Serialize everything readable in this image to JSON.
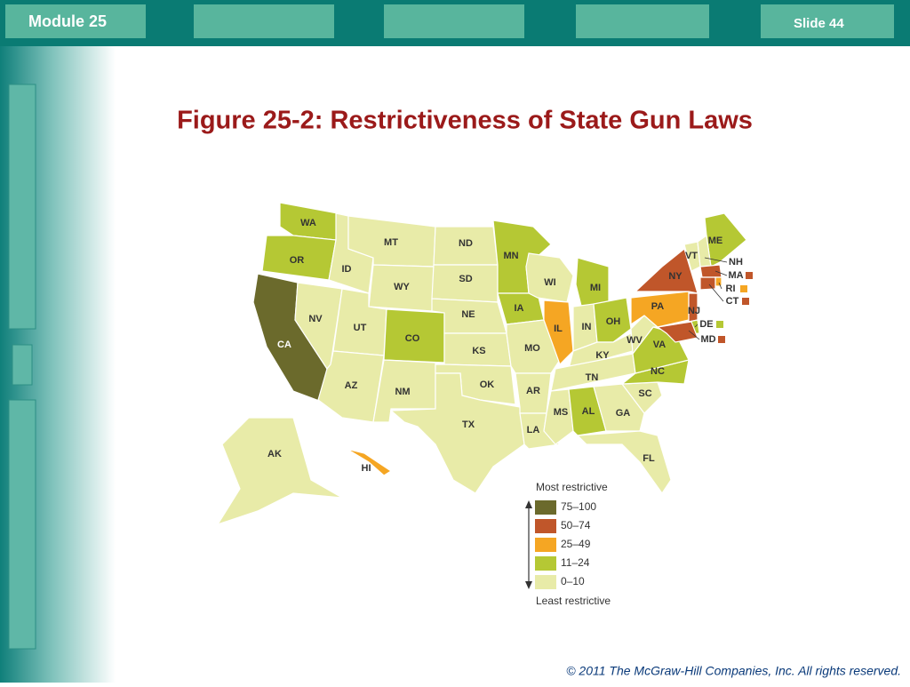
{
  "header": {
    "module": "Module 25",
    "slide": "Slide 44"
  },
  "title": "Figure 25-2: Restrictiveness of State Gun Laws",
  "map": {
    "states": [
      {
        "label": "WA",
        "color": "#b5c834"
      },
      {
        "label": "OR",
        "color": "#b5c834"
      },
      {
        "label": "CA",
        "color": "#6b6a2c"
      },
      {
        "label": "NV",
        "color": "#e8eba8"
      },
      {
        "label": "ID",
        "color": "#e8eba8"
      },
      {
        "label": "MT",
        "color": "#e8eba8"
      },
      {
        "label": "WY",
        "color": "#e8eba8"
      },
      {
        "label": "UT",
        "color": "#e8eba8"
      },
      {
        "label": "CO",
        "color": "#b5c834"
      },
      {
        "label": "AZ",
        "color": "#e8eba8"
      },
      {
        "label": "NM",
        "color": "#e8eba8"
      },
      {
        "label": "ND",
        "color": "#e8eba8"
      },
      {
        "label": "SD",
        "color": "#e8eba8"
      },
      {
        "label": "NE",
        "color": "#e8eba8"
      },
      {
        "label": "KS",
        "color": "#e8eba8"
      },
      {
        "label": "OK",
        "color": "#e8eba8"
      },
      {
        "label": "TX",
        "color": "#e8eba8"
      },
      {
        "label": "MN",
        "color": "#b5c834"
      },
      {
        "label": "IA",
        "color": "#b5c834"
      },
      {
        "label": "MO",
        "color": "#e8eba8"
      },
      {
        "label": "AR",
        "color": "#e8eba8"
      },
      {
        "label": "LA",
        "color": "#e8eba8"
      },
      {
        "label": "WI",
        "color": "#e8eba8"
      },
      {
        "label": "IL",
        "color": "#f5a623"
      },
      {
        "label": "MI",
        "color": "#b5c834"
      },
      {
        "label": "IN",
        "color": "#e8eba8"
      },
      {
        "label": "OH",
        "color": "#b5c834"
      },
      {
        "label": "KY",
        "color": "#e8eba8"
      },
      {
        "label": "TN",
        "color": "#e8eba8"
      },
      {
        "label": "MS",
        "color": "#e8eba8"
      },
      {
        "label": "AL",
        "color": "#b5c834"
      },
      {
        "label": "GA",
        "color": "#e8eba8"
      },
      {
        "label": "FL",
        "color": "#e8eba8"
      },
      {
        "label": "SC",
        "color": "#e8eba8"
      },
      {
        "label": "NC",
        "color": "#b5c834"
      },
      {
        "label": "VA",
        "color": "#b5c834"
      },
      {
        "label": "WV",
        "color": "#e8eba8"
      },
      {
        "label": "PA",
        "color": "#f5a623"
      },
      {
        "label": "NY",
        "color": "#c0562a"
      },
      {
        "label": "VT",
        "color": "#e8eba8"
      },
      {
        "label": "ME",
        "color": "#b5c834"
      },
      {
        "label": "NH",
        "color": "#e8eba8"
      },
      {
        "label": "MA",
        "color": "#c0562a"
      },
      {
        "label": "RI",
        "color": "#f5a623"
      },
      {
        "label": "CT",
        "color": "#c0562a"
      },
      {
        "label": "NJ",
        "color": "#c0562a"
      },
      {
        "label": "DE",
        "color": "#b5c834"
      },
      {
        "label": "MD",
        "color": "#c0562a"
      },
      {
        "label": "AK",
        "color": "#e8eba8"
      },
      {
        "label": "HI",
        "color": "#f5a623"
      }
    ],
    "legend": {
      "top": "Most restrictive",
      "bottom": "Least restrictive",
      "items": [
        {
          "label": "75–100",
          "color": "#6b6a2c"
        },
        {
          "label": "50–74",
          "color": "#c0562a"
        },
        {
          "label": "25–49",
          "color": "#f5a623"
        },
        {
          "label": "11–24",
          "color": "#b5c834"
        },
        {
          "label": "0–10",
          "color": "#e8eba8"
        }
      ]
    }
  },
  "footer": "© 2011 The McGraw-Hill Companies, Inc. All rights reserved."
}
